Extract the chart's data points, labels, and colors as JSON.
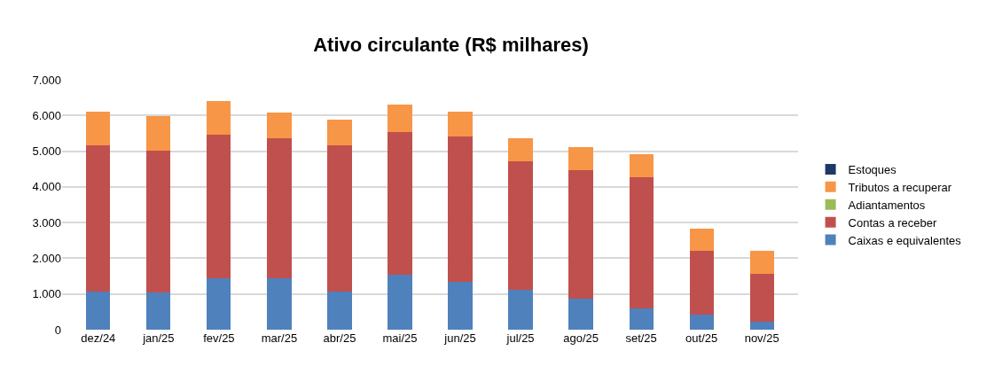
{
  "chart_data": {
    "type": "bar",
    "title": "Ativo circulante (R$ milhares)",
    "stacked": true,
    "grid": "y",
    "legend": "right",
    "categories": [
      "dez/24",
      "jan/25",
      "fev/25",
      "mar/25",
      "abr/25",
      "mai/25",
      "jun/25",
      "jul/25",
      "ago/25",
      "set/25",
      "out/25",
      "nov/25"
    ],
    "series": [
      {
        "name": "Caixas e equivalentes",
        "color": "#4f81bd",
        "values": [
          1070,
          1040,
          1440,
          1440,
          1070,
          1530,
          1340,
          1110,
          880,
          600,
          420,
          230
        ]
      },
      {
        "name": "Contas a receber",
        "color": "#c0504d",
        "values": [
          4100,
          3980,
          4020,
          3930,
          4090,
          4010,
          4080,
          3610,
          3580,
          3660,
          1780,
          1330
        ]
      },
      {
        "name": "Adiantamentos",
        "color": "#9bbb59",
        "values": [
          0,
          0,
          0,
          0,
          0,
          0,
          0,
          0,
          0,
          0,
          0,
          0
        ]
      },
      {
        "name": "Tributos a recuperar",
        "color": "#f79646",
        "values": [
          940,
          950,
          950,
          720,
          720,
          760,
          690,
          630,
          650,
          650,
          620,
          660
        ]
      },
      {
        "name": "Estoques",
        "color": "#1f3864",
        "values": [
          0,
          0,
          0,
          0,
          0,
          0,
          0,
          0,
          0,
          0,
          0,
          0
        ]
      }
    ],
    "ylim": [
      0,
      7000
    ],
    "yticks": [
      {
        "value": 0,
        "label": "0"
      },
      {
        "value": 1000,
        "label": "1.000"
      },
      {
        "value": 2000,
        "label": "2.000"
      },
      {
        "value": 3000,
        "label": "3.000"
      },
      {
        "value": 4000,
        "label": "4.000"
      },
      {
        "value": 5000,
        "label": "5.000"
      },
      {
        "value": 6000,
        "label": "6.000"
      },
      {
        "value": 7000,
        "label": "7.000"
      }
    ]
  }
}
